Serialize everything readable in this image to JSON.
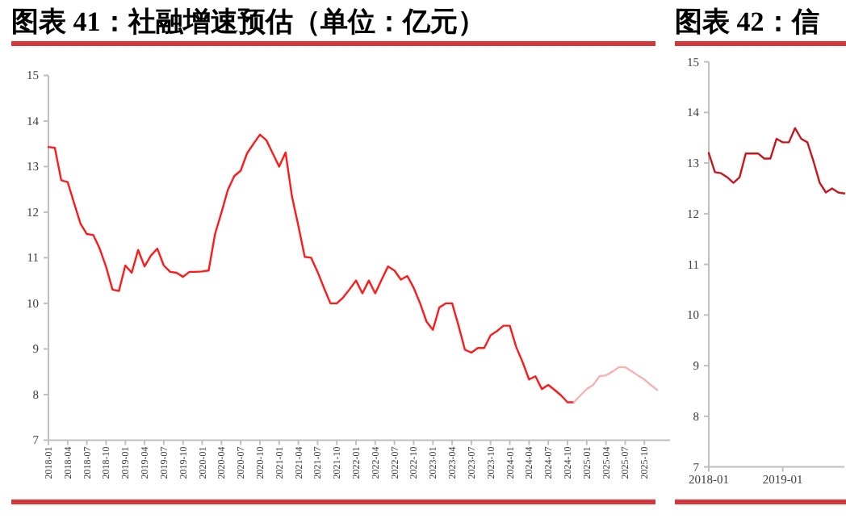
{
  "chart_data": [
    {
      "type": "line",
      "title": "图表 41：社融增速预估（单位：亿元）",
      "categories": [
        "2018-01",
        null,
        null,
        "2018-04",
        null,
        null,
        "2018-07",
        null,
        null,
        "2018-10",
        null,
        null,
        "2019-01",
        null,
        null,
        "2019-04",
        null,
        null,
        "2019-07",
        null,
        null,
        "2019-10",
        null,
        null,
        "2020-01",
        null,
        null,
        "2020-04",
        null,
        null,
        "2020-07",
        null,
        null,
        "2020-10",
        null,
        null,
        "2021-01",
        null,
        null,
        "2021-04",
        null,
        null,
        "2021-07",
        null,
        null,
        "2021-10",
        null,
        null,
        "2022-01",
        null,
        null,
        "2022-04",
        null,
        null,
        "2022-07",
        null,
        null,
        "2022-10",
        null,
        null,
        "2023-01",
        null,
        null,
        "2023-04",
        null,
        null,
        "2023-07",
        null,
        null,
        "2023-10",
        null,
        null,
        "2024-01",
        null,
        null,
        "2024-04",
        null,
        null,
        "2024-07",
        null,
        null,
        "2024-10",
        null,
        null,
        "2025-01",
        null,
        null,
        "2025-04",
        null,
        null,
        "2025-07",
        null,
        null,
        "2025-10",
        null,
        null
      ],
      "series": [
        {
          "color": "#ff1a1a",
          "values": [
            13.43,
            13.41,
            12.7,
            12.66,
            12.2,
            11.75,
            11.52,
            11.5,
            11.2,
            10.8,
            10.3,
            10.27,
            10.83,
            10.67,
            11.17,
            10.81,
            11.05,
            11.2,
            10.83,
            10.69,
            10.67,
            10.58,
            10.69,
            10.69,
            10.7,
            10.72,
            11.52,
            11.99,
            12.49,
            12.79,
            12.91,
            13.29,
            13.5,
            13.7,
            13.58,
            13.29,
            13.0,
            13.31,
            12.35,
            11.7,
            11.02,
            11.0,
            10.69,
            10.34,
            10.0,
            10.0,
            10.13,
            10.31,
            10.5,
            10.22,
            10.5,
            10.22,
            10.52,
            10.81,
            10.72,
            10.52,
            10.6,
            10.34,
            10.0,
            9.6,
            9.42,
            9.91,
            10.0,
            10.0,
            9.51,
            8.98,
            8.92,
            9.02,
            9.02,
            9.3,
            9.39,
            9.51,
            9.51,
            9.04,
            8.71,
            8.33,
            8.4,
            8.12,
            8.21,
            8.1,
            7.98,
            7.83,
            7.83,
            null,
            null,
            null,
            null,
            null,
            null,
            null,
            null,
            null,
            null,
            null,
            null,
            null
          ]
        },
        {
          "color": "#f7b3b3",
          "values": [
            null,
            null,
            null,
            null,
            null,
            null,
            null,
            null,
            null,
            null,
            null,
            null,
            null,
            null,
            null,
            null,
            null,
            null,
            null,
            null,
            null,
            null,
            null,
            null,
            null,
            null,
            null,
            null,
            null,
            null,
            null,
            null,
            null,
            null,
            null,
            null,
            null,
            null,
            null,
            null,
            null,
            null,
            null,
            null,
            null,
            null,
            null,
            null,
            null,
            null,
            null,
            null,
            null,
            null,
            null,
            null,
            null,
            null,
            null,
            null,
            null,
            null,
            null,
            null,
            null,
            null,
            null,
            null,
            null,
            null,
            null,
            null,
            null,
            null,
            null,
            null,
            null,
            null,
            null,
            null,
            null,
            null,
            7.83,
            7.98,
            8.12,
            8.21,
            8.4,
            8.42,
            8.5,
            8.6,
            8.6,
            8.51,
            8.42,
            8.33,
            8.21,
            8.1
          ]
        }
      ],
      "ylim": [
        7,
        15
      ],
      "yticks": [
        7,
        8,
        9,
        10,
        11,
        12,
        13,
        14,
        15
      ]
    },
    {
      "type": "line",
      "title": "图表 42：信",
      "x": [
        "2018-01",
        "2018-02",
        "2018-03",
        "2018-04",
        "2018-05",
        "2018-06",
        "2018-07",
        "2018-08",
        "2018-09",
        "2018-10",
        "2018-11",
        "2018-12",
        "2019-01",
        "2019-02",
        "2019-03",
        "2019-04",
        "2019-05",
        "2019-06",
        "2019-07",
        "2019-08",
        "2019-09",
        "2019-10",
        "2019-11"
      ],
      "series": [
        {
          "color": "#c8161d",
          "values": [
            13.2,
            12.82,
            12.8,
            12.72,
            12.61,
            12.72,
            13.19,
            13.19,
            13.19,
            13.09,
            13.09,
            13.48,
            13.41,
            13.41,
            13.69,
            13.48,
            13.41,
            13.03,
            12.61,
            12.42,
            12.5,
            12.42,
            12.4
          ]
        }
      ],
      "xlim": [
        "2018-01",
        "2019-11"
      ],
      "xticks": [
        "2018-01",
        "2019-01"
      ],
      "ylim": [
        7,
        15
      ],
      "yticks": [
        7,
        8,
        9,
        10,
        11,
        12,
        13,
        14,
        15
      ]
    }
  ]
}
